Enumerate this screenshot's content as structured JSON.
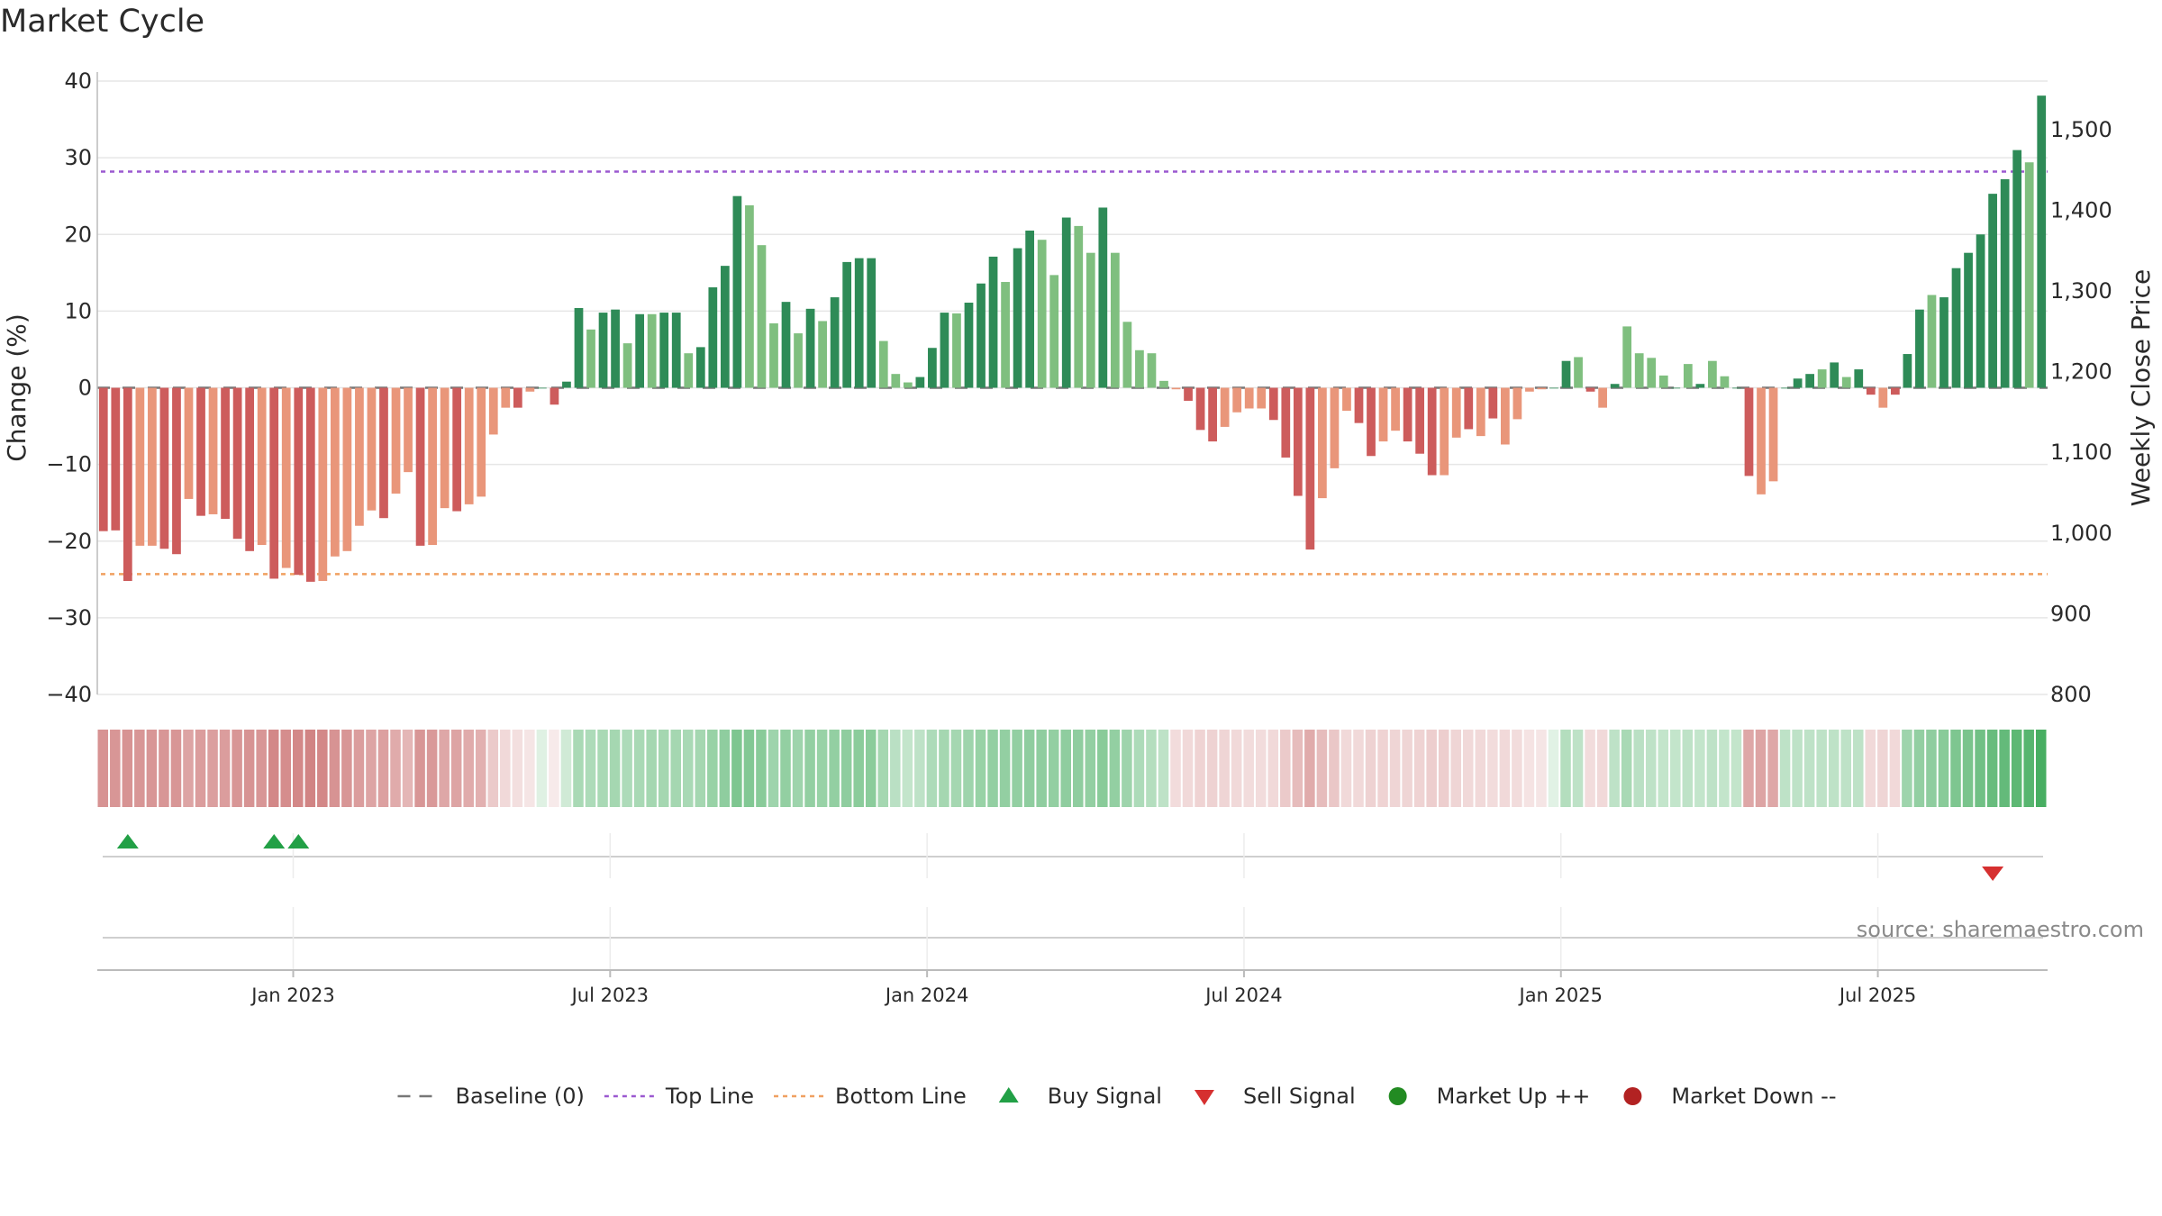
{
  "title": "Market Cycle",
  "source": "source: sharemaestro.com",
  "colors": {
    "pos_strong": "#2e8b57",
    "pos_weak": "#7fbf7f",
    "neg_strong": "#cd5c5c",
    "neg_weak": "#e9967a",
    "top_line": "#9b59d0",
    "bottom_line": "#f0a060",
    "baseline": "#777777",
    "buy": "#22a046",
    "sell": "#d63030",
    "market_up": "#228b22",
    "market_down": "#b22222",
    "grid": "#e6e6e6"
  },
  "legend": [
    {
      "label": "Baseline (0)",
      "kind": "dash",
      "color": "#777777"
    },
    {
      "label": "Top Line",
      "kind": "dot",
      "color": "#9b59d0"
    },
    {
      "label": "Bottom Line",
      "kind": "dot",
      "color": "#f0a060"
    },
    {
      "label": "Buy Signal",
      "kind": "tri-up",
      "color": "#22a046"
    },
    {
      "label": "Sell Signal",
      "kind": "tri-down",
      "color": "#d63030"
    },
    {
      "label": "Market Up ++",
      "kind": "circle",
      "color": "#228b22"
    },
    {
      "label": "Market Down --",
      "kind": "circle",
      "color": "#b22222"
    }
  ],
  "chart_data": {
    "type": "bar",
    "title": "Market Cycle",
    "ylabel": "Change (%)",
    "y2label": "Weekly Close Price",
    "ylim": [
      -40,
      40
    ],
    "y2lim": [
      800,
      1560
    ],
    "yticks": [
      40,
      30,
      20,
      10,
      0,
      -10,
      -20,
      -30,
      -40
    ],
    "yticks_labels": [
      "40",
      "30",
      "20",
      "10",
      "0",
      "−10",
      "−20",
      "−30",
      "−40"
    ],
    "y2ticks": [
      1500,
      1400,
      1300,
      1200,
      1100,
      1000,
      900,
      800
    ],
    "y2ticks_labels": [
      "1,500",
      "1,400",
      "1,300",
      "1,200",
      "1,100",
      "1,000",
      "900",
      "800"
    ],
    "xticks": [
      "Jan 2023",
      "Jul 2023",
      "Jan 2024",
      "Jul 2024",
      "Jan 2025",
      "Jul 2025"
    ],
    "xtick_index": [
      16,
      42,
      68,
      94,
      120,
      146
    ],
    "top_line": 28.2,
    "bottom_line": -24.3,
    "baseline": 0,
    "grid": true,
    "legend_position": "bottom",
    "values": [
      -18.7,
      -18.6,
      -25.2,
      -20.6,
      -20.6,
      -21,
      -21.7,
      -14.5,
      -16.7,
      -16.5,
      -17.1,
      -19.7,
      -21.3,
      -20.5,
      -24.9,
      -23.5,
      -24.4,
      -25.3,
      -25.2,
      -22,
      -21.3,
      -18,
      -16,
      -17,
      -13.8,
      -11,
      -20.6,
      -20.5,
      -15.7,
      -16.1,
      -15.2,
      -14.2,
      -6.1,
      -2.6,
      -2.6,
      -0.5,
      0,
      -2.2,
      0.8,
      10.4,
      7.6,
      9.8,
      10.2,
      5.8,
      9.6,
      9.6,
      9.8,
      9.8,
      4.5,
      5.3,
      13.1,
      15.9,
      25,
      23.8,
      18.6,
      8.4,
      11.2,
      7.1,
      10.3,
      8.7,
      11.8,
      16.4,
      16.9,
      16.9,
      6.1,
      1.8,
      0.7,
      1.4,
      5.2,
      9.8,
      9.7,
      11.1,
      13.6,
      17.1,
      13.8,
      18.2,
      20.5,
      19.3,
      14.7,
      22.2,
      21.1,
      17.6,
      23.5,
      17.6,
      8.6,
      4.9,
      4.5,
      0.9,
      -0.2,
      -1.7,
      -5.5,
      -7,
      -5.1,
      -3.2,
      -2.7,
      -2.7,
      -4.2,
      -9.1,
      -14.1,
      -21.1,
      -14.4,
      -10.5,
      -3,
      -4.6,
      -8.9,
      -7,
      -5.6,
      -7,
      -8.6,
      -11.4,
      -11.4,
      -6.5,
      -5.4,
      -6.3,
      -4,
      -7.4,
      -4.1,
      -0.5,
      -0.2,
      0,
      3.5,
      4,
      -0.5,
      -2.6,
      0.5,
      8,
      4.5,
      3.9,
      1.6,
      0,
      3.1,
      0.5,
      3.5,
      1.5,
      0,
      -11.5,
      -13.9,
      -12.2,
      0,
      1.2,
      1.8,
      2.4,
      3.3,
      1.4,
      2.4,
      -0.9,
      -2.6,
      -0.9,
      4.4,
      10.2,
      12.1,
      11.8,
      15.6,
      17.6,
      20,
      25.3,
      27.2,
      31,
      29.4,
      38.1
    ],
    "strength": [
      "s",
      "s",
      "s",
      "w",
      "w",
      "s",
      "s",
      "w",
      "s",
      "w",
      "s",
      "s",
      "s",
      "w",
      "s",
      "w",
      "s",
      "s",
      "w",
      "w",
      "w",
      "w",
      "w",
      "s",
      "w",
      "w",
      "s",
      "w",
      "w",
      "s",
      "w",
      "w",
      "w",
      "w",
      "s",
      "w",
      "s",
      "s",
      "s",
      "s",
      "w",
      "s",
      "s",
      "w",
      "s",
      "w",
      "s",
      "s",
      "w",
      "s",
      "s",
      "s",
      "s",
      "w",
      "w",
      "w",
      "s",
      "w",
      "s",
      "w",
      "s",
      "s",
      "s",
      "s",
      "w",
      "w",
      "w",
      "s",
      "s",
      "s",
      "w",
      "s",
      "s",
      "s",
      "w",
      "s",
      "s",
      "w",
      "w",
      "s",
      "w",
      "w",
      "s",
      "w",
      "w",
      "w",
      "w",
      "w",
      "w",
      "s",
      "s",
      "s",
      "w",
      "w",
      "w",
      "w",
      "s",
      "s",
      "s",
      "s",
      "w",
      "w",
      "w",
      "s",
      "s",
      "w",
      "w",
      "s",
      "s",
      "s",
      "w",
      "w",
      "s",
      "w",
      "s",
      "w",
      "w",
      "w",
      "w",
      "s",
      "s",
      "w",
      "s",
      "w",
      "s",
      "w",
      "w",
      "w",
      "w",
      "s",
      "w",
      "s",
      "w",
      "w",
      "s",
      "s",
      "w",
      "w",
      "s",
      "s",
      "s",
      "w",
      "s",
      "w",
      "s",
      "s",
      "w",
      "s",
      "s",
      "s",
      "w",
      "s",
      "s",
      "s",
      "s",
      "s",
      "s",
      "s",
      "w",
      "s"
    ],
    "heat_intensity": [
      0.62,
      0.6,
      0.62,
      0.6,
      0.6,
      0.6,
      0.6,
      0.52,
      0.56,
      0.55,
      0.56,
      0.6,
      0.62,
      0.6,
      0.68,
      0.65,
      0.68,
      0.7,
      0.68,
      0.62,
      0.6,
      0.56,
      0.52,
      0.54,
      0.48,
      0.42,
      0.6,
      0.58,
      0.5,
      0.52,
      0.48,
      0.45,
      0.3,
      0.22,
      0.18,
      0.15,
      0.15,
      0.12,
      0.22,
      0.4,
      0.38,
      0.4,
      0.42,
      0.38,
      0.4,
      0.42,
      0.42,
      0.42,
      0.4,
      0.42,
      0.48,
      0.52,
      0.6,
      0.58,
      0.55,
      0.45,
      0.5,
      0.45,
      0.5,
      0.48,
      0.5,
      0.52,
      0.54,
      0.54,
      0.42,
      0.32,
      0.28,
      0.3,
      0.38,
      0.42,
      0.42,
      0.45,
      0.48,
      0.5,
      0.5,
      0.5,
      0.52,
      0.52,
      0.5,
      0.52,
      0.52,
      0.5,
      0.55,
      0.5,
      0.45,
      0.38,
      0.35,
      0.3,
      0.2,
      0.22,
      0.25,
      0.26,
      0.24,
      0.22,
      0.2,
      0.2,
      0.22,
      0.3,
      0.38,
      0.48,
      0.38,
      0.32,
      0.22,
      0.22,
      0.26,
      0.25,
      0.24,
      0.24,
      0.25,
      0.28,
      0.28,
      0.24,
      0.22,
      0.22,
      0.2,
      0.22,
      0.2,
      0.16,
      0.15,
      0.14,
      0.35,
      0.3,
      0.2,
      0.22,
      0.3,
      0.4,
      0.32,
      0.3,
      0.28,
      0.28,
      0.3,
      0.28,
      0.3,
      0.28,
      0.28,
      0.5,
      0.52,
      0.5,
      0.3,
      0.3,
      0.3,
      0.3,
      0.3,
      0.3,
      0.3,
      0.22,
      0.24,
      0.22,
      0.45,
      0.5,
      0.52,
      0.55,
      0.6,
      0.62,
      0.66,
      0.7,
      0.72,
      0.75,
      0.78,
      0.85
    ],
    "buy_signals": [
      2,
      14,
      16
    ],
    "sell_signals": [
      155
    ]
  }
}
